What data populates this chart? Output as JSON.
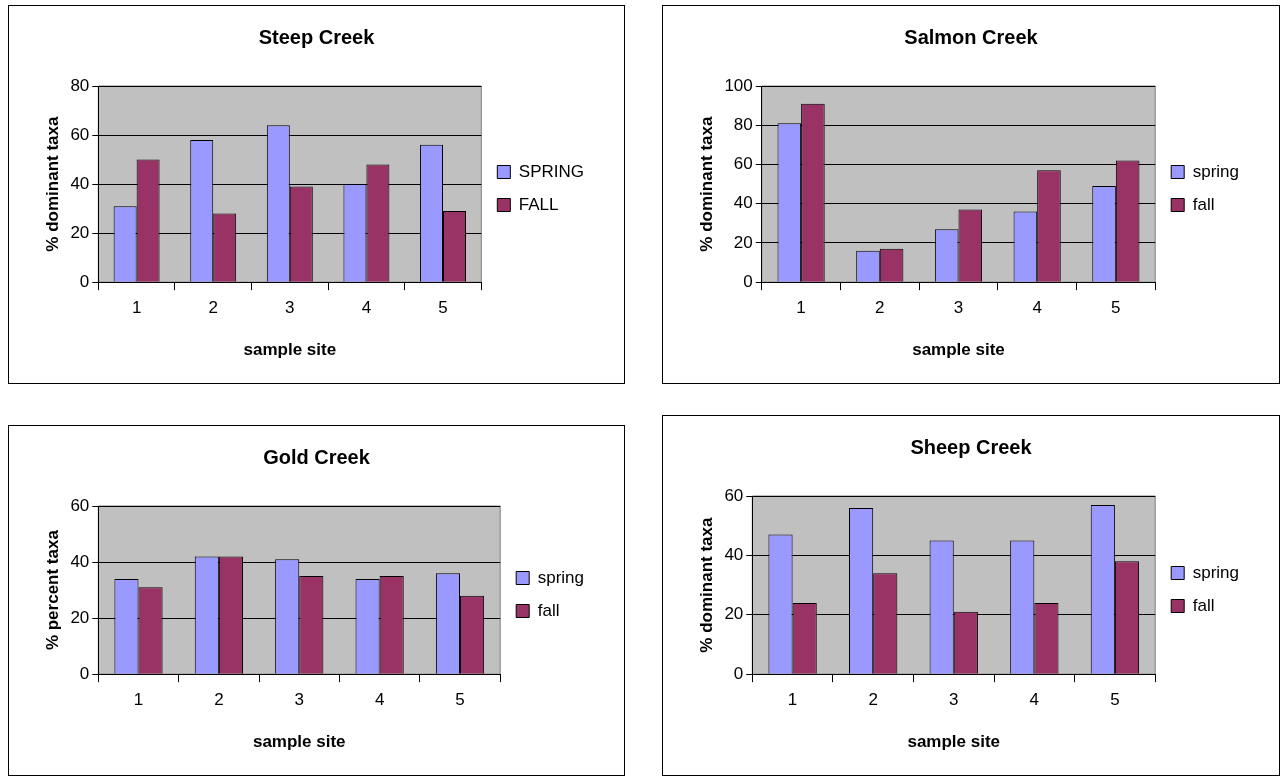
{
  "chart_data": [
    {
      "type": "bar",
      "title": "Steep Creek",
      "xlabel": "sample site",
      "ylabel": "% dominant taxa",
      "categories": [
        "1",
        "2",
        "3",
        "4",
        "5"
      ],
      "series": [
        {
          "name": "SPRING",
          "color": "#9999ff",
          "values": [
            31,
            58,
            64,
            40,
            56
          ]
        },
        {
          "name": "FALL",
          "color": "#993366",
          "values": [
            50,
            28,
            39,
            48,
            29
          ]
        }
      ],
      "ylim": [
        0,
        80
      ],
      "yticks": [
        0,
        20,
        40,
        60,
        80
      ],
      "grid": "y",
      "legend": "right"
    },
    {
      "type": "bar",
      "title": "Salmon Creek",
      "xlabel": "sample site",
      "ylabel": "% dominant taxa",
      "categories": [
        "1",
        "2",
        "3",
        "4",
        "5"
      ],
      "series": [
        {
          "name": "spring",
          "color": "#9999ff",
          "values": [
            81,
            16,
            27,
            36,
            49
          ]
        },
        {
          "name": "fall",
          "color": "#993366",
          "values": [
            91,
            17,
            37,
            57,
            62
          ]
        }
      ],
      "ylim": [
        0,
        100
      ],
      "yticks": [
        0,
        20,
        40,
        60,
        80,
        100
      ],
      "grid": "y",
      "legend": "right"
    },
    {
      "type": "bar",
      "title": "Gold Creek",
      "xlabel": "sample site",
      "ylabel": "% percent taxa",
      "categories": [
        "1",
        "2",
        "3",
        "4",
        "5"
      ],
      "series": [
        {
          "name": "spring",
          "color": "#9999ff",
          "values": [
            34,
            42,
            41,
            34,
            36
          ]
        },
        {
          "name": "fall",
          "color": "#993366",
          "values": [
            31,
            42,
            35,
            35,
            28
          ]
        }
      ],
      "ylim": [
        0,
        60
      ],
      "yticks": [
        0,
        20,
        40,
        60
      ],
      "grid": "y",
      "legend": "right"
    },
    {
      "type": "bar",
      "title": "Sheep Creek",
      "xlabel": "sample site",
      "ylabel": "% dominant taxa",
      "categories": [
        "1",
        "2",
        "3",
        "4",
        "5"
      ],
      "series": [
        {
          "name": "spring",
          "color": "#9999ff",
          "values": [
            47,
            56,
            45,
            45,
            57
          ]
        },
        {
          "name": "fall",
          "color": "#993366",
          "values": [
            24,
            34,
            21,
            24,
            38
          ]
        }
      ],
      "ylim": [
        0,
        60
      ],
      "yticks": [
        0,
        20,
        40,
        60
      ],
      "grid": "y",
      "legend": "right"
    }
  ]
}
